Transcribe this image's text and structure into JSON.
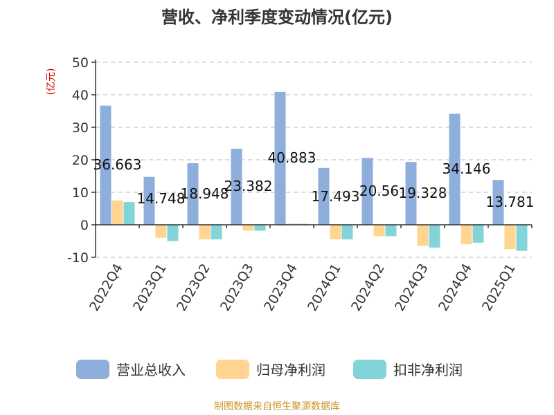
{
  "title": "营收、净利季度变动情况(亿元)",
  "unit_label": "(亿元)",
  "source": "制图数据来自恒生聚源数据库",
  "colors": {
    "revenue": "#8eaedc",
    "net_profit": "#ffd591",
    "deducted_profit": "#82d4d8"
  },
  "chart_data": {
    "type": "bar",
    "categories": [
      "2022Q4",
      "2023Q1",
      "2023Q2",
      "2023Q3",
      "2023Q4",
      "2024Q1",
      "2024Q2",
      "2024Q3",
      "2024Q4",
      "2025Q1"
    ],
    "series": [
      {
        "name": "营业总收入",
        "values": [
          36.663,
          14.748,
          18.948,
          23.382,
          40.883,
          17.493,
          20.56,
          19.328,
          34.146,
          13.781
        ]
      },
      {
        "name": "归母净利润",
        "values": [
          7.5,
          -4.0,
          -4.5,
          -1.8,
          0.4,
          -4.5,
          -3.5,
          -6.5,
          -6.0,
          -7.5
        ]
      },
      {
        "name": "扣非净利润",
        "values": [
          7.0,
          -5.0,
          -4.5,
          -1.8,
          0.3,
          -4.5,
          -3.5,
          -7.0,
          -5.5,
          -8.0
        ]
      }
    ],
    "data_labels": [
      "36.663",
      "14.748",
      "18.948",
      "23.382",
      "40.883",
      "17.493",
      "20.56",
      "19.328",
      "34.146",
      "13.781"
    ],
    "yticks": [
      50,
      40,
      30,
      20,
      10,
      0,
      -10
    ],
    "ylim": [
      -10,
      50
    ],
    "grid": true,
    "legend": "bottom"
  }
}
